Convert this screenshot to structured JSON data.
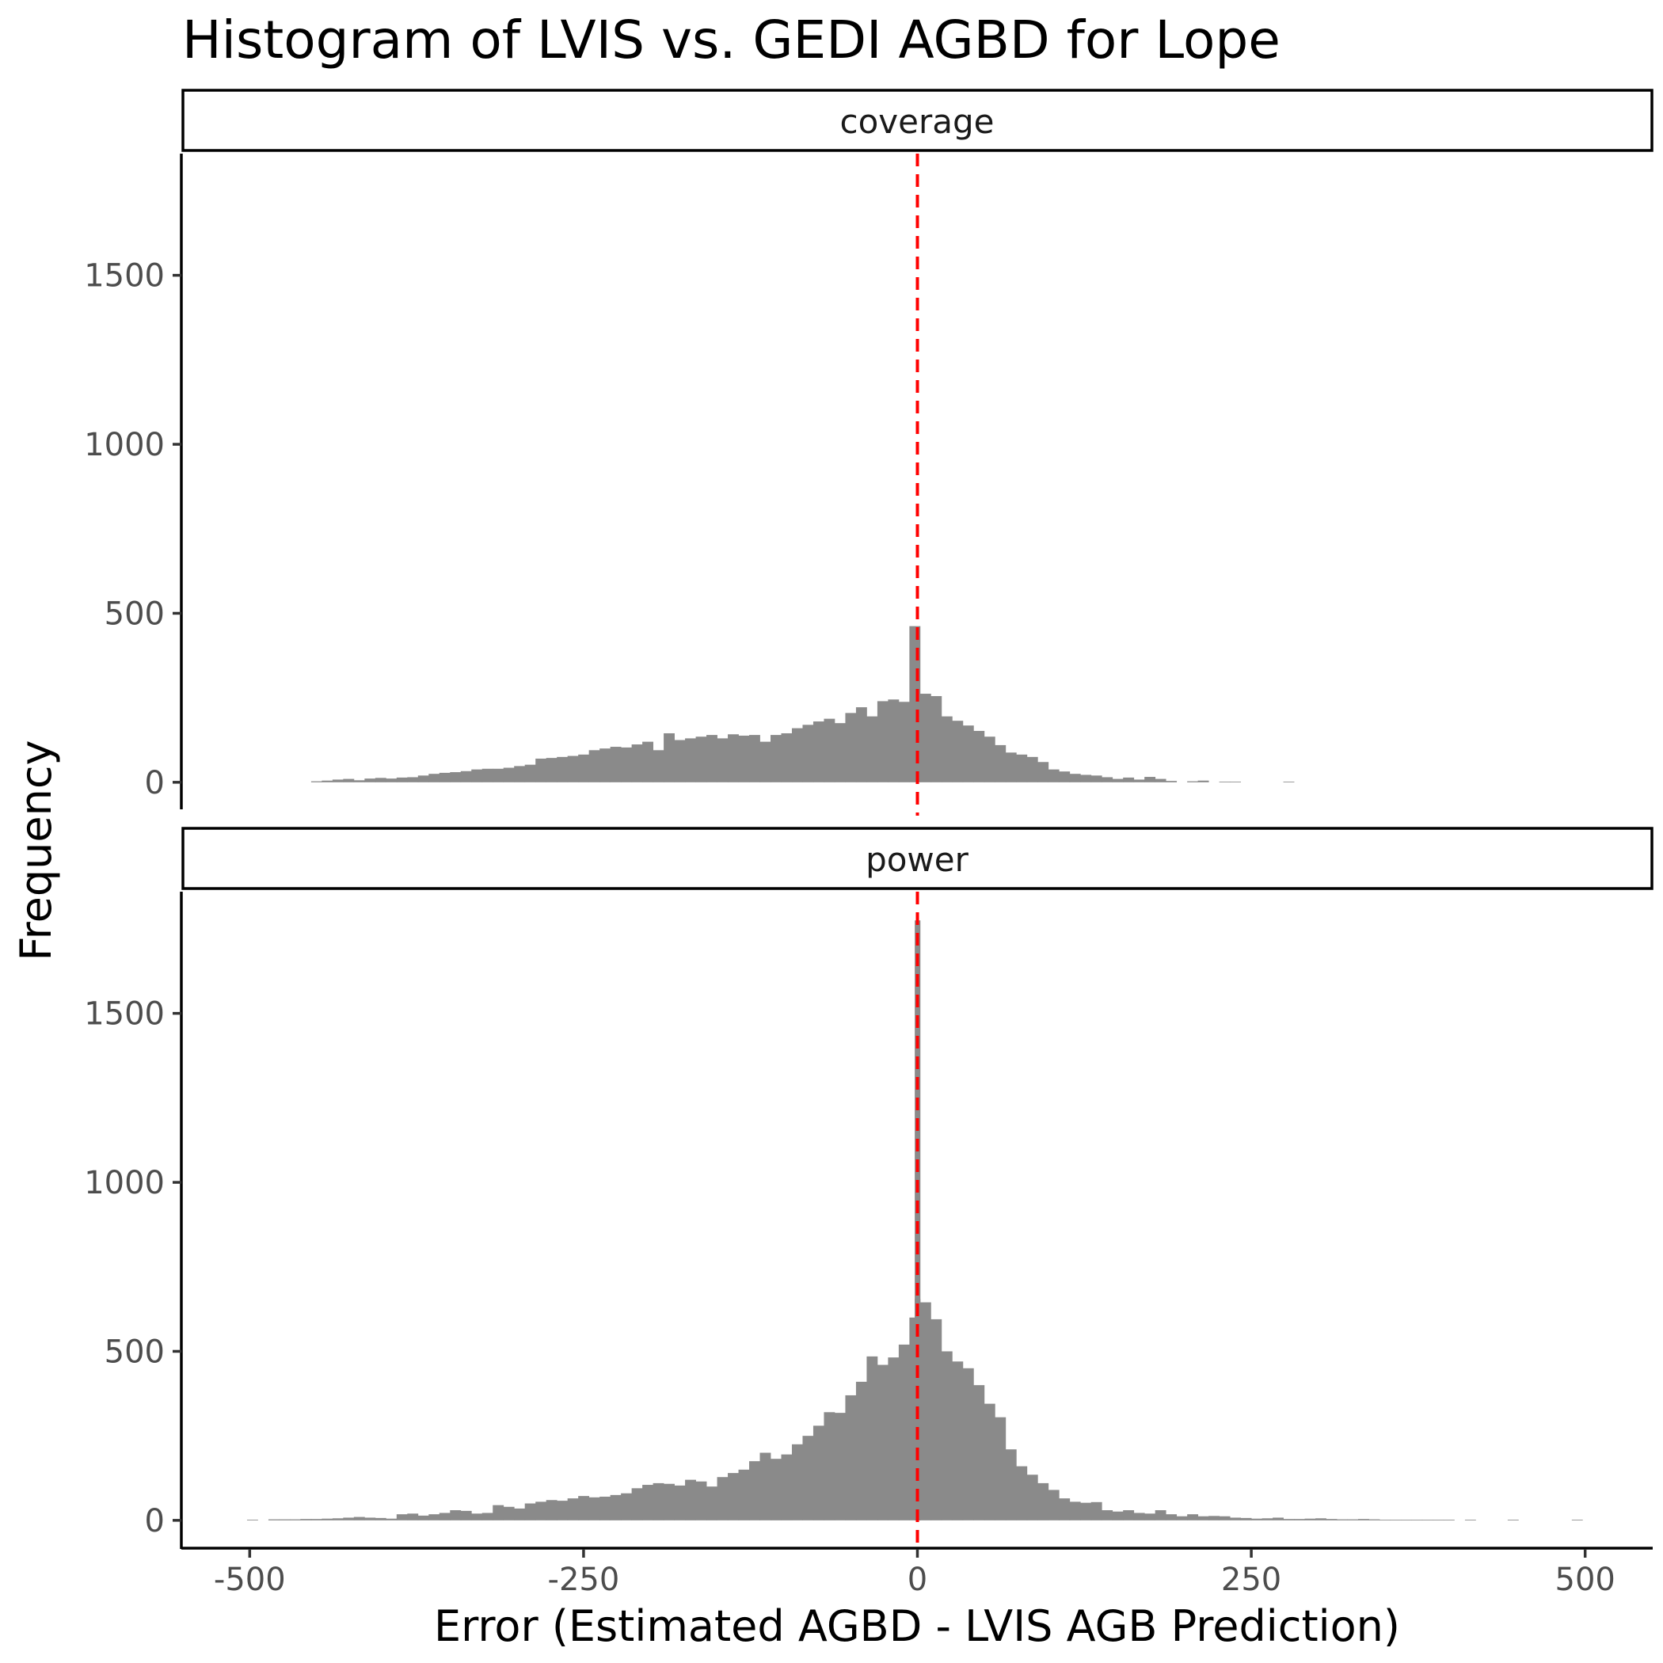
{
  "chart_data": {
    "type": "bar",
    "title": "Histogram of LVIS vs. GEDI AGBD for Lope",
    "xlabel": "Error (Estimated AGBD - LVIS AGB Prediction)",
    "ylabel": "Frequency",
    "xlim": [
      -550,
      550
    ],
    "ylim": [
      -80,
      1860
    ],
    "x_ticks": [
      -500,
      -250,
      0,
      250,
      500
    ],
    "y_ticks": [
      0,
      500,
      1000,
      1500
    ],
    "bin_width": 8,
    "reference_line": {
      "x": 0,
      "color": "#ff0000",
      "style": "dashed"
    },
    "bar_color": "#8a8a8a",
    "grid": false,
    "panels": [
      {
        "name": "coverage",
        "bins": [
          {
            "x": -450,
            "y": 3
          },
          {
            "x": -442,
            "y": 5
          },
          {
            "x": -434,
            "y": 8
          },
          {
            "x": -426,
            "y": 10
          },
          {
            "x": -418,
            "y": 6
          },
          {
            "x": -410,
            "y": 11
          },
          {
            "x": -402,
            "y": 13
          },
          {
            "x": -394,
            "y": 11
          },
          {
            "x": -386,
            "y": 14
          },
          {
            "x": -378,
            "y": 15
          },
          {
            "x": -370,
            "y": 20
          },
          {
            "x": -362,
            "y": 25
          },
          {
            "x": -354,
            "y": 28
          },
          {
            "x": -346,
            "y": 30
          },
          {
            "x": -338,
            "y": 33
          },
          {
            "x": -330,
            "y": 38
          },
          {
            "x": -322,
            "y": 40
          },
          {
            "x": -314,
            "y": 40
          },
          {
            "x": -306,
            "y": 43
          },
          {
            "x": -298,
            "y": 48
          },
          {
            "x": -290,
            "y": 52
          },
          {
            "x": -282,
            "y": 70
          },
          {
            "x": -274,
            "y": 72
          },
          {
            "x": -266,
            "y": 75
          },
          {
            "x": -258,
            "y": 78
          },
          {
            "x": -250,
            "y": 82
          },
          {
            "x": -242,
            "y": 95
          },
          {
            "x": -234,
            "y": 100
          },
          {
            "x": -226,
            "y": 105
          },
          {
            "x": -218,
            "y": 103
          },
          {
            "x": -210,
            "y": 112
          },
          {
            "x": -202,
            "y": 120
          },
          {
            "x": -194,
            "y": 95
          },
          {
            "x": -186,
            "y": 145
          },
          {
            "x": -178,
            "y": 125
          },
          {
            "x": -170,
            "y": 130
          },
          {
            "x": -162,
            "y": 135
          },
          {
            "x": -154,
            "y": 140
          },
          {
            "x": -146,
            "y": 130
          },
          {
            "x": -138,
            "y": 142
          },
          {
            "x": -130,
            "y": 138
          },
          {
            "x": -122,
            "y": 140
          },
          {
            "x": -114,
            "y": 120
          },
          {
            "x": -106,
            "y": 140
          },
          {
            "x": -98,
            "y": 145
          },
          {
            "x": -90,
            "y": 160
          },
          {
            "x": -82,
            "y": 170
          },
          {
            "x": -74,
            "y": 180
          },
          {
            "x": -66,
            "y": 188
          },
          {
            "x": -58,
            "y": 175
          },
          {
            "x": -50,
            "y": 205
          },
          {
            "x": -42,
            "y": 222
          },
          {
            "x": -34,
            "y": 195
          },
          {
            "x": -26,
            "y": 240
          },
          {
            "x": -18,
            "y": 245
          },
          {
            "x": -10,
            "y": 238
          },
          {
            "x": -2,
            "y": 462
          },
          {
            "x": 6,
            "y": 262
          },
          {
            "x": 14,
            "y": 255
          },
          {
            "x": 22,
            "y": 195
          },
          {
            "x": 30,
            "y": 182
          },
          {
            "x": 38,
            "y": 168
          },
          {
            "x": 46,
            "y": 152
          },
          {
            "x": 54,
            "y": 135
          },
          {
            "x": 62,
            "y": 110
          },
          {
            "x": 70,
            "y": 88
          },
          {
            "x": 78,
            "y": 82
          },
          {
            "x": 86,
            "y": 75
          },
          {
            "x": 94,
            "y": 60
          },
          {
            "x": 102,
            "y": 38
          },
          {
            "x": 110,
            "y": 32
          },
          {
            "x": 118,
            "y": 25
          },
          {
            "x": 126,
            "y": 22
          },
          {
            "x": 134,
            "y": 20
          },
          {
            "x": 142,
            "y": 15
          },
          {
            "x": 150,
            "y": 10
          },
          {
            "x": 158,
            "y": 14
          },
          {
            "x": 166,
            "y": 8
          },
          {
            "x": 174,
            "y": 16
          },
          {
            "x": 182,
            "y": 10
          },
          {
            "x": 190,
            "y": 4
          },
          {
            "x": 206,
            "y": 3
          },
          {
            "x": 214,
            "y": 5
          },
          {
            "x": 230,
            "y": 2
          },
          {
            "x": 238,
            "y": 2
          },
          {
            "x": 278,
            "y": 2
          }
        ]
      },
      {
        "name": "power",
        "bins": [
          {
            "x": -498,
            "y": 2
          },
          {
            "x": -482,
            "y": 3
          },
          {
            "x": -474,
            "y": 3
          },
          {
            "x": -466,
            "y": 3
          },
          {
            "x": -458,
            "y": 4
          },
          {
            "x": -450,
            "y": 4
          },
          {
            "x": -442,
            "y": 5
          },
          {
            "x": -434,
            "y": 6
          },
          {
            "x": -426,
            "y": 8
          },
          {
            "x": -418,
            "y": 10
          },
          {
            "x": -410,
            "y": 8
          },
          {
            "x": -402,
            "y": 7
          },
          {
            "x": -394,
            "y": 5
          },
          {
            "x": -386,
            "y": 18
          },
          {
            "x": -378,
            "y": 20
          },
          {
            "x": -370,
            "y": 14
          },
          {
            "x": -362,
            "y": 18
          },
          {
            "x": -354,
            "y": 22
          },
          {
            "x": -346,
            "y": 30
          },
          {
            "x": -338,
            "y": 28
          },
          {
            "x": -330,
            "y": 20
          },
          {
            "x": -322,
            "y": 22
          },
          {
            "x": -314,
            "y": 45
          },
          {
            "x": -306,
            "y": 40
          },
          {
            "x": -298,
            "y": 35
          },
          {
            "x": -290,
            "y": 50
          },
          {
            "x": -282,
            "y": 55
          },
          {
            "x": -274,
            "y": 60
          },
          {
            "x": -266,
            "y": 58
          },
          {
            "x": -258,
            "y": 65
          },
          {
            "x": -250,
            "y": 72
          },
          {
            "x": -242,
            "y": 68
          },
          {
            "x": -234,
            "y": 70
          },
          {
            "x": -226,
            "y": 75
          },
          {
            "x": -218,
            "y": 80
          },
          {
            "x": -210,
            "y": 95
          },
          {
            "x": -202,
            "y": 105
          },
          {
            "x": -194,
            "y": 110
          },
          {
            "x": -186,
            "y": 108
          },
          {
            "x": -178,
            "y": 103
          },
          {
            "x": -170,
            "y": 120
          },
          {
            "x": -162,
            "y": 115
          },
          {
            "x": -154,
            "y": 100
          },
          {
            "x": -146,
            "y": 128
          },
          {
            "x": -138,
            "y": 140
          },
          {
            "x": -130,
            "y": 150
          },
          {
            "x": -122,
            "y": 175
          },
          {
            "x": -114,
            "y": 200
          },
          {
            "x": -106,
            "y": 182
          },
          {
            "x": -98,
            "y": 195
          },
          {
            "x": -90,
            "y": 225
          },
          {
            "x": -82,
            "y": 250
          },
          {
            "x": -74,
            "y": 280
          },
          {
            "x": -66,
            "y": 320
          },
          {
            "x": -58,
            "y": 318
          },
          {
            "x": -50,
            "y": 370
          },
          {
            "x": -42,
            "y": 410
          },
          {
            "x": -34,
            "y": 485
          },
          {
            "x": -26,
            "y": 460
          },
          {
            "x": -18,
            "y": 482
          },
          {
            "x": -10,
            "y": 520
          },
          {
            "x": -2,
            "y": 600
          },
          {
            "x": 2,
            "y": 655
          },
          {
            "x": 3,
            "y": 1775
          },
          {
            "x": 6,
            "y": 645
          },
          {
            "x": 14,
            "y": 595
          },
          {
            "x": 22,
            "y": 500
          },
          {
            "x": 30,
            "y": 470
          },
          {
            "x": 38,
            "y": 450
          },
          {
            "x": 46,
            "y": 400
          },
          {
            "x": 54,
            "y": 345
          },
          {
            "x": 62,
            "y": 305
          },
          {
            "x": 70,
            "y": 210
          },
          {
            "x": 78,
            "y": 160
          },
          {
            "x": 86,
            "y": 135
          },
          {
            "x": 94,
            "y": 110
          },
          {
            "x": 102,
            "y": 90
          },
          {
            "x": 110,
            "y": 65
          },
          {
            "x": 118,
            "y": 55
          },
          {
            "x": 126,
            "y": 52
          },
          {
            "x": 134,
            "y": 54
          },
          {
            "x": 142,
            "y": 30
          },
          {
            "x": 150,
            "y": 26
          },
          {
            "x": 158,
            "y": 30
          },
          {
            "x": 166,
            "y": 22
          },
          {
            "x": 174,
            "y": 20
          },
          {
            "x": 182,
            "y": 30
          },
          {
            "x": 190,
            "y": 18
          },
          {
            "x": 198,
            "y": 12
          },
          {
            "x": 206,
            "y": 18
          },
          {
            "x": 214,
            "y": 12
          },
          {
            "x": 222,
            "y": 13
          },
          {
            "x": 230,
            "y": 12
          },
          {
            "x": 238,
            "y": 8
          },
          {
            "x": 246,
            "y": 7
          },
          {
            "x": 254,
            "y": 5
          },
          {
            "x": 262,
            "y": 6
          },
          {
            "x": 270,
            "y": 8
          },
          {
            "x": 278,
            "y": 4
          },
          {
            "x": 286,
            "y": 4
          },
          {
            "x": 294,
            "y": 5
          },
          {
            "x": 302,
            "y": 6
          },
          {
            "x": 310,
            "y": 4
          },
          {
            "x": 318,
            "y": 3
          },
          {
            "x": 326,
            "y": 3
          },
          {
            "x": 334,
            "y": 4
          },
          {
            "x": 342,
            "y": 3
          },
          {
            "x": 350,
            "y": 2
          },
          {
            "x": 358,
            "y": 2
          },
          {
            "x": 366,
            "y": 2
          },
          {
            "x": 374,
            "y": 2
          },
          {
            "x": 382,
            "y": 2
          },
          {
            "x": 390,
            "y": 2
          },
          {
            "x": 398,
            "y": 2
          },
          {
            "x": 414,
            "y": 2
          },
          {
            "x": 446,
            "y": 2
          },
          {
            "x": 494,
            "y": 2
          }
        ]
      }
    ]
  }
}
